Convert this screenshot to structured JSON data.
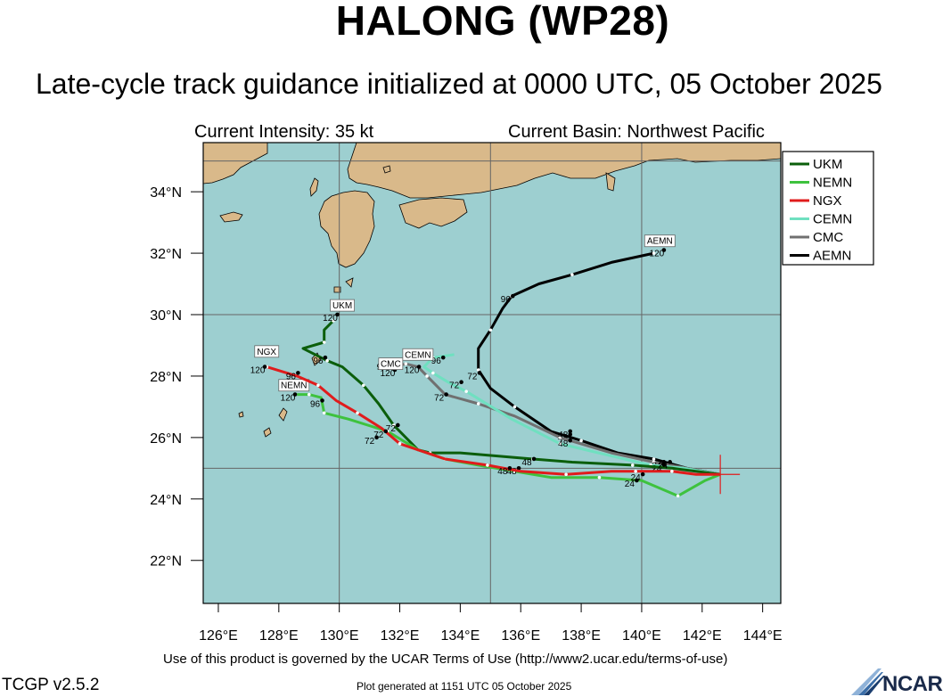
{
  "header": {
    "title": "HALONG (WP28)",
    "subtitle": "Late-cycle track guidance initialized at 0000 UTC, 05 October 2025",
    "intensity": "Current Intensity: 35 kt",
    "basin": "Current Basin: Northwest Pacific"
  },
  "map": {
    "lon_range": [
      125.5,
      144.6
    ],
    "lat_range": [
      20.6,
      35.6
    ],
    "ocean_color": "#9dcfd0",
    "land_color": "#d9b98a",
    "x_ticks": [
      "126°E",
      "128°E",
      "130°E",
      "132°E",
      "134°E",
      "136°E",
      "138°E",
      "140°E",
      "142°E",
      "144°E"
    ],
    "y_ticks": [
      "22°N",
      "24°N",
      "26°N",
      "28°N",
      "30°N",
      "32°N",
      "34°N"
    ],
    "current_position": {
      "lon": 142.6,
      "lat": 24.8
    }
  },
  "legend": [
    {
      "name": "UKM",
      "color": "#0b5e0b"
    },
    {
      "name": "NEMN",
      "color": "#3ec23e"
    },
    {
      "name": "NGX",
      "color": "#e01c1c"
    },
    {
      "name": "CEMN",
      "color": "#6fe0c0"
    },
    {
      "name": "CMC",
      "color": "#707070"
    },
    {
      "name": "AEMN",
      "color": "#000000"
    }
  ],
  "tracks": [
    {
      "name": "AEMN",
      "color": "#000000",
      "points": [
        [
          142.6,
          24.8
        ],
        [
          141.5,
          25.0
        ],
        [
          140.4,
          25.3
        ],
        [
          139.2,
          25.5
        ],
        [
          138.0,
          25.9
        ],
        [
          137.0,
          26.2
        ],
        [
          135.8,
          27.0
        ],
        [
          135.0,
          27.6
        ],
        [
          134.6,
          28.2
        ],
        [
          134.6,
          28.9
        ],
        [
          135.0,
          29.5
        ],
        [
          135.4,
          30.2
        ],
        [
          135.7,
          30.6
        ],
        [
          136.6,
          31.0
        ],
        [
          137.7,
          31.3
        ],
        [
          139.0,
          31.7
        ],
        [
          140.4,
          32.0
        ]
      ],
      "labels": [
        {
          "text": "24",
          "lon": 140.5,
          "lat": 24.9
        },
        {
          "text": "48",
          "lon": 137.4,
          "lat": 25.9
        },
        {
          "text": "72",
          "lon": 134.4,
          "lat": 27.9
        },
        {
          "text": "96",
          "lon": 135.5,
          "lat": 30.4
        },
        {
          "text": "120",
          "lon": 140.5,
          "lat": 31.9
        }
      ],
      "tag": {
        "text": "AEMN",
        "lon": 140.6,
        "lat": 32.3
      }
    },
    {
      "name": "CMC",
      "color": "#707070",
      "points": [
        [
          142.6,
          24.8
        ],
        [
          141.5,
          25.0
        ],
        [
          140.4,
          25.2
        ],
        [
          139.0,
          25.5
        ],
        [
          137.3,
          26.0
        ],
        [
          135.8,
          26.7
        ],
        [
          134.6,
          27.1
        ],
        [
          133.5,
          27.4
        ],
        [
          132.9,
          28.0
        ],
        [
          132.6,
          28.3
        ],
        [
          132.2,
          28.4
        ],
        [
          131.8,
          28.3
        ]
      ],
      "labels": [
        {
          "text": "24",
          "lon": 140.5,
          "lat": 25.0
        },
        {
          "text": "48",
          "lon": 137.4,
          "lat": 26.0
        },
        {
          "text": "72",
          "lon": 133.3,
          "lat": 27.2
        },
        {
          "text": "96",
          "lon": 131.4,
          "lat": 28.2
        },
        {
          "text": "120",
          "lon": 131.6,
          "lat": 28.0
        }
      ],
      "tag": {
        "text": "CMC",
        "lon": 131.7,
        "lat": 28.3
      }
    },
    {
      "name": "CEMN",
      "color": "#6fe0c0",
      "points": [
        [
          142.6,
          24.8
        ],
        [
          141.4,
          25.0
        ],
        [
          140.3,
          25.1
        ],
        [
          139.0,
          25.4
        ],
        [
          137.3,
          25.8
        ],
        [
          135.7,
          26.6
        ],
        [
          134.2,
          27.5
        ],
        [
          133.6,
          27.8
        ],
        [
          133.1,
          28.1
        ],
        [
          132.8,
          28.3
        ],
        [
          133.1,
          28.6
        ],
        [
          133.8,
          28.7
        ]
      ],
      "labels": [
        {
          "text": "24",
          "lon": 140.5,
          "lat": 24.9
        },
        {
          "text": "48",
          "lon": 137.4,
          "lat": 25.7
        },
        {
          "text": "72",
          "lon": 133.8,
          "lat": 27.6
        },
        {
          "text": "96",
          "lon": 133.2,
          "lat": 28.4
        },
        {
          "text": "120",
          "lon": 132.4,
          "lat": 28.1
        }
      ],
      "tag": {
        "text": "CEMN",
        "lon": 132.6,
        "lat": 28.6
      }
    },
    {
      "name": "UKM",
      "color": "#0b5e0b",
      "points": [
        [
          142.6,
          24.8
        ],
        [
          141.0,
          25.0
        ],
        [
          139.7,
          25.1
        ],
        [
          137.7,
          25.2
        ],
        [
          136.4,
          25.3
        ],
        [
          134.0,
          25.5
        ],
        [
          133.0,
          25.5
        ],
        [
          132.6,
          25.6
        ],
        [
          131.8,
          26.4
        ],
        [
          131.3,
          27.1
        ],
        [
          130.8,
          27.7
        ],
        [
          130.1,
          28.3
        ],
        [
          129.6,
          28.5
        ],
        [
          128.8,
          28.9
        ],
        [
          129.5,
          29.1
        ],
        [
          129.5,
          29.5
        ],
        [
          129.8,
          29.8
        ]
      ],
      "labels": [
        {
          "text": "24",
          "lon": 140.7,
          "lat": 25.0
        },
        {
          "text": "48",
          "lon": 136.2,
          "lat": 25.1
        },
        {
          "text": "72",
          "lon": 131.7,
          "lat": 26.2
        },
        {
          "text": "96",
          "lon": 129.3,
          "lat": 28.4
        },
        {
          "text": "120",
          "lon": 129.7,
          "lat": 29.8
        }
      ],
      "tag": {
        "text": "UKM",
        "lon": 130.1,
        "lat": 30.2
      }
    },
    {
      "name": "NEMN",
      "color": "#3ec23e",
      "points": [
        [
          142.6,
          24.8
        ],
        [
          142.1,
          24.6
        ],
        [
          141.2,
          24.1
        ],
        [
          140.0,
          24.6
        ],
        [
          138.6,
          24.7
        ],
        [
          137.0,
          24.7
        ],
        [
          135.8,
          24.9
        ],
        [
          134.6,
          25.1
        ],
        [
          133.5,
          25.3
        ],
        [
          132.6,
          25.6
        ],
        [
          131.6,
          26.2
        ],
        [
          130.3,
          26.6
        ],
        [
          129.5,
          26.8
        ],
        [
          129.4,
          27.3
        ],
        [
          129.0,
          27.4
        ],
        [
          128.6,
          27.4
        ]
      ],
      "labels": [
        {
          "text": "24",
          "lon": 139.6,
          "lat": 24.4
        },
        {
          "text": "48",
          "lon": 135.7,
          "lat": 24.8
        },
        {
          "text": "72",
          "lon": 131.0,
          "lat": 25.8
        },
        {
          "text": "96",
          "lon": 129.2,
          "lat": 27.0
        },
        {
          "text": "120",
          "lon": 128.3,
          "lat": 27.2
        }
      ],
      "tag": {
        "text": "NEMN",
        "lon": 128.5,
        "lat": 27.6
      }
    },
    {
      "name": "NGX",
      "color": "#e01c1c",
      "points": [
        [
          142.6,
          24.8
        ],
        [
          141.8,
          24.8
        ],
        [
          141.0,
          24.9
        ],
        [
          140.4,
          24.9
        ],
        [
          139.8,
          24.9
        ],
        [
          139.0,
          24.9
        ],
        [
          137.5,
          24.8
        ],
        [
          136.0,
          24.9
        ],
        [
          134.9,
          25.1
        ],
        [
          133.5,
          25.3
        ],
        [
          132.0,
          25.8
        ],
        [
          131.4,
          26.3
        ],
        [
          130.6,
          26.8
        ],
        [
          129.9,
          27.2
        ],
        [
          129.3,
          27.7
        ],
        [
          128.6,
          28.0
        ],
        [
          127.6,
          28.3
        ]
      ],
      "labels": [
        {
          "text": "24",
          "lon": 139.8,
          "lat": 24.6
        },
        {
          "text": "48",
          "lon": 135.4,
          "lat": 24.8
        },
        {
          "text": "72",
          "lon": 131.3,
          "lat": 26.0
        },
        {
          "text": "96",
          "lon": 128.4,
          "lat": 27.9
        },
        {
          "text": "120",
          "lon": 127.3,
          "lat": 28.1
        }
      ],
      "tag": {
        "text": "NGX",
        "lon": 127.6,
        "lat": 28.7
      }
    }
  ],
  "footer": {
    "terms": "Use of this product is governed by the UCAR Terms of Use (http://www2.ucar.edu/terms-of-use)",
    "generated": "Plot generated at 1151 UTC   05 October 2025",
    "version": "TCGP v2.5.2",
    "logo": "NCAR"
  }
}
